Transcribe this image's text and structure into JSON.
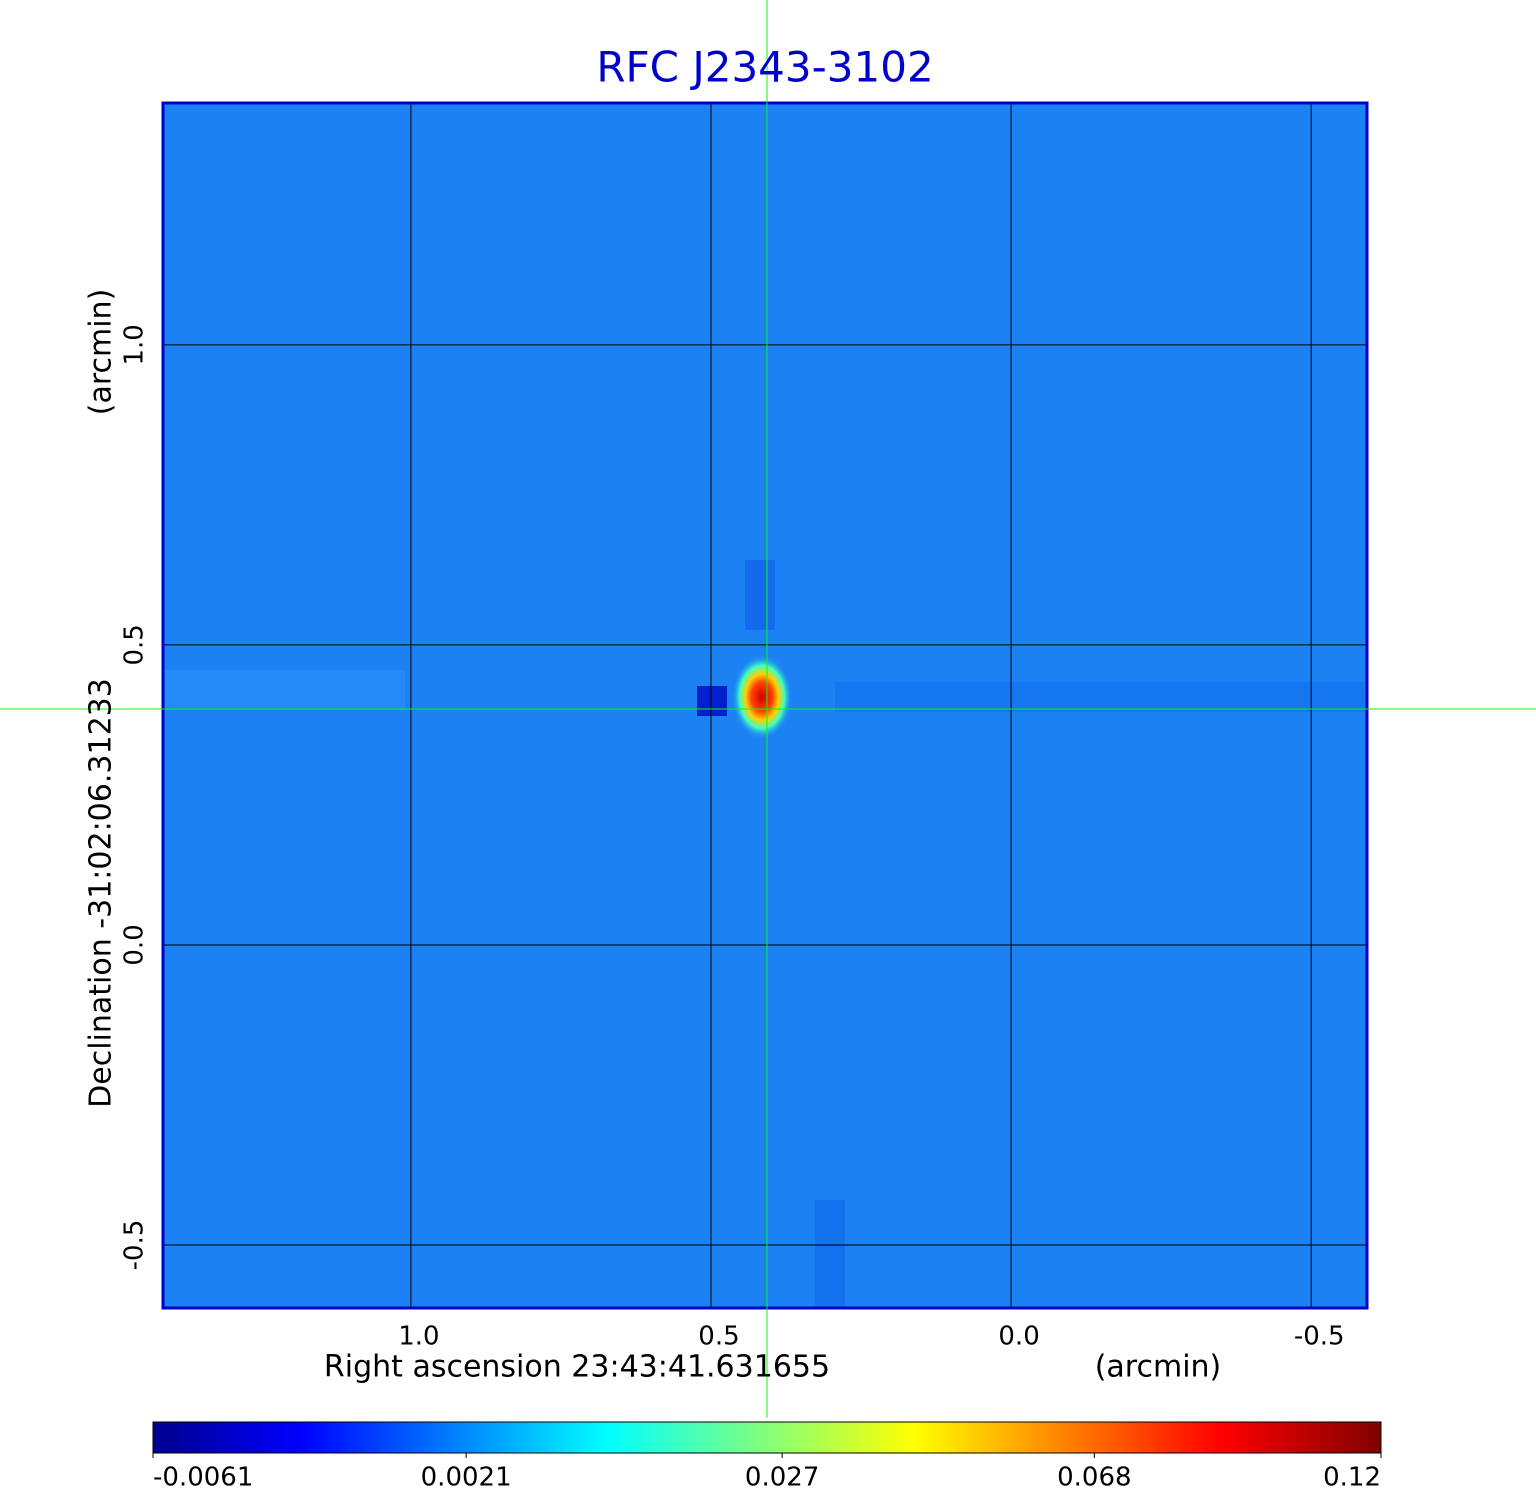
{
  "chart_data": {
    "type": "image",
    "title": "RFC J2343-3102",
    "xlabel": "Right ascension  23:43:41.631655",
    "xunit": "(arcmin)",
    "ylabel": "Declination  -31:02:06.31233",
    "yunit": "(arcmin)",
    "xlim": [
      1.413,
      -0.593
    ],
    "ylim": [
      -0.605,
      1.403
    ],
    "xticks": [
      {
        "value": 1.0,
        "label": "1.0"
      },
      0.5,
      {
        "value": 0,
        "label": "0.0"
      },
      -0.5
    ],
    "yticks": [
      -0.5,
      {
        "value": 0,
        "label": "0.0"
      },
      0.5,
      {
        "value": 1.0,
        "label": "1.0"
      }
    ],
    "grid": true,
    "colorbar": {
      "lim": [
        -0.0061,
        0.12
      ],
      "scale": "sqrt",
      "colormap": "jet",
      "ticks": [
        -0.0061,
        0.0021,
        0.027,
        0.068,
        0.12
      ]
    }
  }
}
